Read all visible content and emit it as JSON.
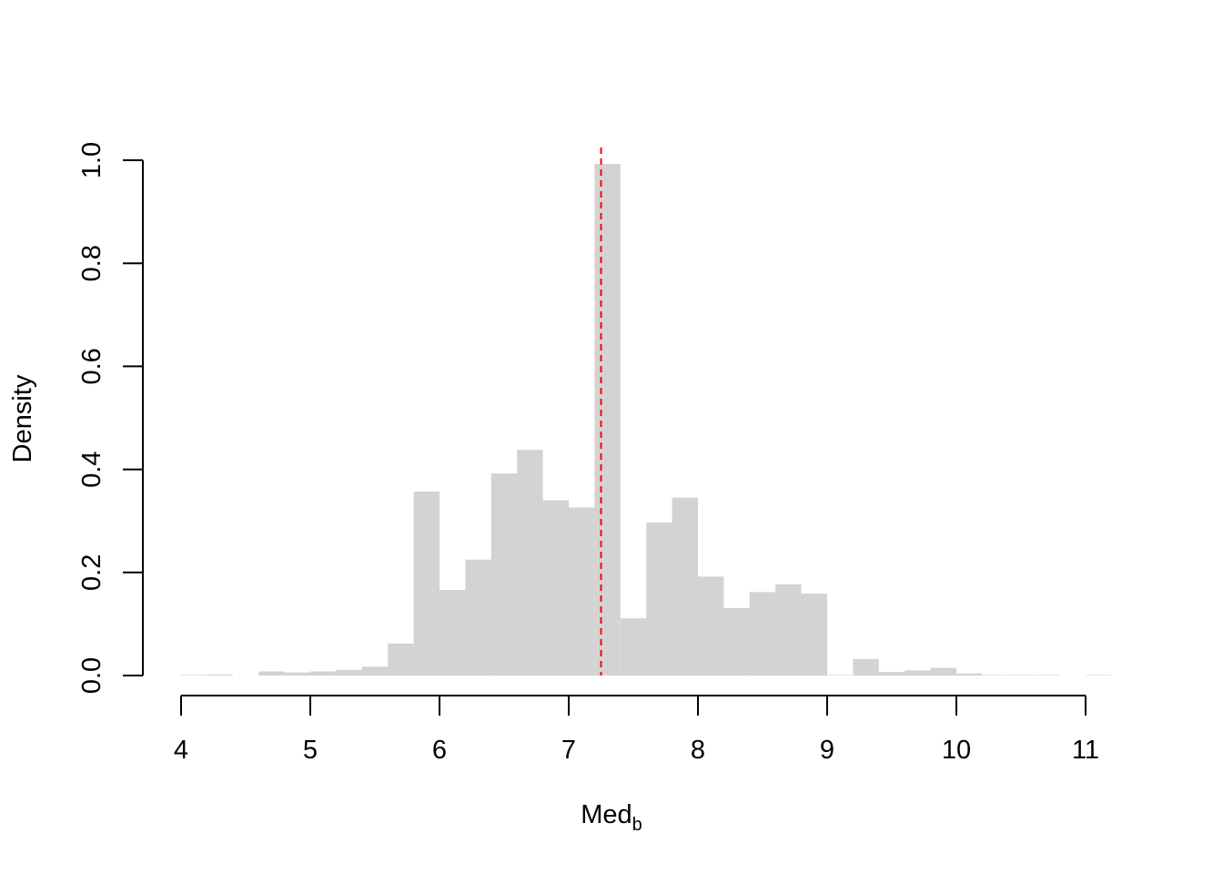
{
  "chart_data": {
    "type": "histogram",
    "title": "",
    "xlabel": "Med",
    "xlabel_subscript": "b",
    "ylabel": "Density",
    "xlim": [
      4,
      11.2
    ],
    "ylim": [
      0,
      1.0
    ],
    "x_ticks": [
      4,
      5,
      6,
      7,
      8,
      9,
      10,
      11
    ],
    "x_tick_labels": [
      "4",
      "5",
      "6",
      "7",
      "8",
      "9",
      "10",
      "11"
    ],
    "y_ticks": [
      0,
      0.2,
      0.4,
      0.6,
      0.8,
      1.0
    ],
    "y_tick_labels": [
      "0.0",
      "0.2",
      "0.4",
      "0.6",
      "0.8",
      "1.0"
    ],
    "bin_width": 0.2,
    "bins_start": [
      4.0,
      4.2,
      4.4,
      4.6,
      4.8,
      5.0,
      5.2,
      5.4,
      5.6,
      5.8,
      6.0,
      6.2,
      6.4,
      6.6,
      6.8,
      7.0,
      7.2,
      7.4,
      7.6,
      7.8,
      8.0,
      8.2,
      8.4,
      8.6,
      8.8,
      9.0,
      9.2,
      9.4,
      9.6,
      9.8,
      10.0,
      10.2,
      10.4,
      10.6,
      10.8,
      11.0
    ],
    "density": [
      0.001,
      0.002,
      0.0,
      0.008,
      0.006,
      0.008,
      0.011,
      0.017,
      0.062,
      0.357,
      0.166,
      0.225,
      0.392,
      0.438,
      0.34,
      0.326,
      0.993,
      0.111,
      0.297,
      0.345,
      0.192,
      0.131,
      0.162,
      0.177,
      0.159,
      0.001,
      0.032,
      0.007,
      0.01,
      0.015,
      0.004,
      0.001,
      0.001,
      0.001,
      0.0,
      0.001
    ],
    "bar_color": "#d3d3d3",
    "reference_line": {
      "x": 7.25,
      "style": "dashed",
      "color": "#ff0000"
    },
    "grid": false,
    "legend": "none"
  }
}
